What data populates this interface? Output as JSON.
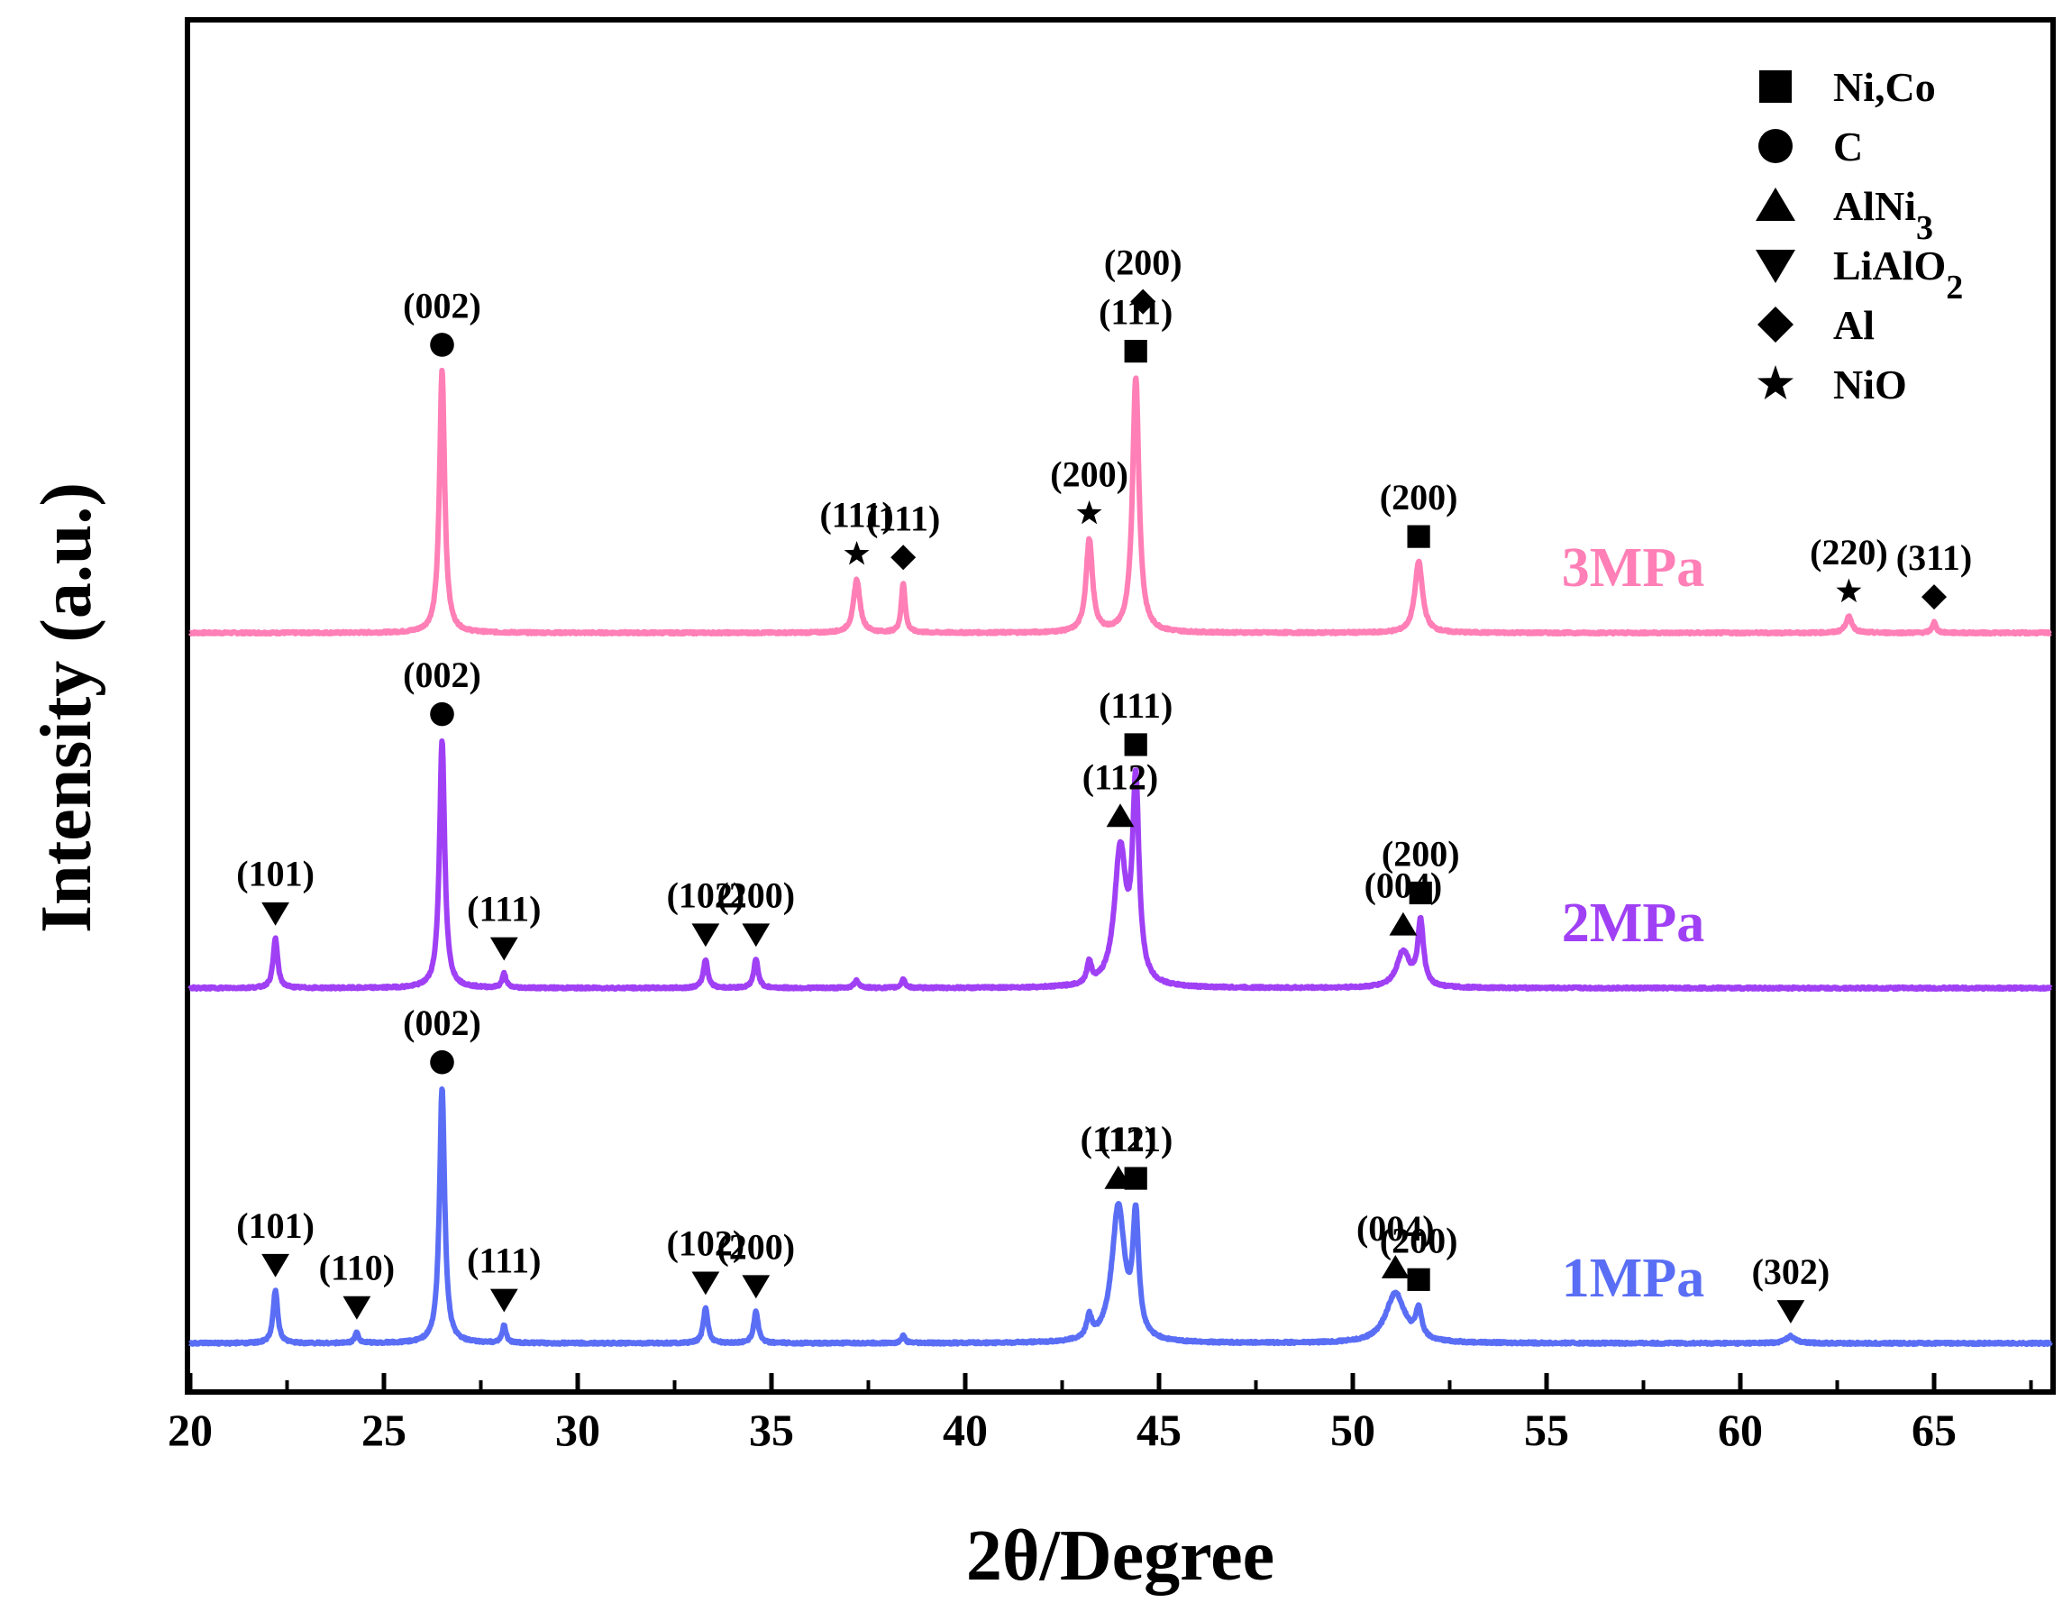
{
  "chart_data": {
    "type": "line",
    "xlabel": "2θ/Degree",
    "ylabel": "Intensity (a.u.)",
    "xlim": [
      20,
      68
    ],
    "xticks": [
      20,
      25,
      30,
      35,
      40,
      45,
      50,
      55,
      60,
      65
    ],
    "legend_position": "top-right",
    "legend": [
      {
        "marker": "square",
        "label": "Ni,Co"
      },
      {
        "marker": "circle",
        "label": "C"
      },
      {
        "marker": "triangle-up",
        "label": "AlNi",
        "sub": "3"
      },
      {
        "marker": "triangle-down",
        "label": "LiAlO",
        "sub": "2"
      },
      {
        "marker": "diamond",
        "label": "Al"
      },
      {
        "marker": "star",
        "label": "NiO"
      }
    ],
    "series": [
      {
        "name": "3MPa",
        "color": "#FF7FB6",
        "offset": 2.0,
        "peaks": [
          {
            "x": 26.5,
            "h": 0.74,
            "w": 0.08
          },
          {
            "x": 37.2,
            "h": 0.15,
            "w": 0.1
          },
          {
            "x": 38.4,
            "h": 0.14,
            "w": 0.06
          },
          {
            "x": 43.2,
            "h": 0.26,
            "w": 0.1
          },
          {
            "x": 44.4,
            "h": 0.72,
            "w": 0.1
          },
          {
            "x": 51.7,
            "h": 0.2,
            "w": 0.12
          },
          {
            "x": 62.8,
            "h": 0.045,
            "w": 0.1
          },
          {
            "x": 65.0,
            "h": 0.03,
            "w": 0.06
          }
        ],
        "annotations": [
          {
            "x": 26.5,
            "marker": "circle",
            "label": "(002)"
          },
          {
            "x": 37.2,
            "marker": "star",
            "label": "(111)"
          },
          {
            "x": 38.4,
            "marker": "diamond",
            "label": "(111)"
          },
          {
            "x": 43.2,
            "marker": "star",
            "label": "(200)"
          },
          {
            "x": 44.4,
            "marker": "square",
            "label": "(111)"
          },
          {
            "x": 44.4,
            "marker": "diamond",
            "label": "(200)"
          },
          {
            "x": 51.7,
            "marker": "square",
            "label": "(200)"
          },
          {
            "x": 62.8,
            "marker": "star",
            "label": "(220)"
          },
          {
            "x": 65.0,
            "marker": "diamond",
            "label": "(311)"
          }
        ]
      },
      {
        "name": "2MPa",
        "color": "#A040F5",
        "offset": 1.0,
        "peaks": [
          {
            "x": 22.2,
            "h": 0.14,
            "w": 0.07
          },
          {
            "x": 26.5,
            "h": 0.7,
            "w": 0.08
          },
          {
            "x": 28.1,
            "h": 0.04,
            "w": 0.06
          },
          {
            "x": 33.3,
            "h": 0.08,
            "w": 0.07
          },
          {
            "x": 34.6,
            "h": 0.08,
            "w": 0.07
          },
          {
            "x": 37.2,
            "h": 0.02,
            "w": 0.08
          },
          {
            "x": 38.4,
            "h": 0.025,
            "w": 0.06
          },
          {
            "x": 43.2,
            "h": 0.06,
            "w": 0.07
          },
          {
            "x": 44.0,
            "h": 0.38,
            "w": 0.18
          },
          {
            "x": 44.4,
            "h": 0.55,
            "w": 0.1
          },
          {
            "x": 51.3,
            "h": 0.1,
            "w": 0.2
          },
          {
            "x": 51.75,
            "h": 0.18,
            "w": 0.09
          }
        ],
        "annotations": [
          {
            "x": 22.2,
            "marker": "triangle-down",
            "label": "(101)"
          },
          {
            "x": 26.5,
            "marker": "circle",
            "label": "(002)"
          },
          {
            "x": 28.1,
            "marker": "triangle-down",
            "label": "(111)"
          },
          {
            "x": 33.3,
            "marker": "triangle-down",
            "label": "(102)"
          },
          {
            "x": 34.6,
            "marker": "triangle-down",
            "label": "(200)"
          },
          {
            "x": 44.0,
            "marker": "triangle-up",
            "label": "(112)"
          },
          {
            "x": 44.4,
            "marker": "square",
            "label": "(111)"
          },
          {
            "x": 51.3,
            "marker": "triangle-up",
            "label": "(004)"
          },
          {
            "x": 51.75,
            "marker": "square",
            "label": "(200)"
          }
        ]
      },
      {
        "name": "1MPa",
        "color": "#5A6EF5",
        "offset": 0.0,
        "peaks": [
          {
            "x": 22.2,
            "h": 0.15,
            "w": 0.07
          },
          {
            "x": 24.3,
            "h": 0.03,
            "w": 0.06
          },
          {
            "x": 26.5,
            "h": 0.72,
            "w": 0.08
          },
          {
            "x": 28.1,
            "h": 0.05,
            "w": 0.06
          },
          {
            "x": 33.3,
            "h": 0.1,
            "w": 0.07
          },
          {
            "x": 34.6,
            "h": 0.09,
            "w": 0.07
          },
          {
            "x": 38.4,
            "h": 0.02,
            "w": 0.06
          },
          {
            "x": 43.2,
            "h": 0.06,
            "w": 0.08
          },
          {
            "x": 43.95,
            "h": 0.38,
            "w": 0.2
          },
          {
            "x": 44.4,
            "h": 0.33,
            "w": 0.09
          },
          {
            "x": 51.1,
            "h": 0.14,
            "w": 0.3
          },
          {
            "x": 51.7,
            "h": 0.08,
            "w": 0.09
          },
          {
            "x": 61.3,
            "h": 0.02,
            "w": 0.15
          }
        ],
        "annotations": [
          {
            "x": 22.2,
            "marker": "triangle-down",
            "label": "(101)"
          },
          {
            "x": 24.3,
            "marker": "triangle-down",
            "label": "(110)"
          },
          {
            "x": 26.5,
            "marker": "circle",
            "label": "(002)"
          },
          {
            "x": 28.1,
            "marker": "triangle-down",
            "label": "(111)"
          },
          {
            "x": 33.3,
            "marker": "triangle-down",
            "label": "(102)"
          },
          {
            "x": 34.6,
            "marker": "triangle-down",
            "label": "(200)"
          },
          {
            "x": 43.95,
            "marker": "triangle-up",
            "label": "(112)"
          },
          {
            "x": 44.4,
            "marker": "square",
            "label": "(111)"
          },
          {
            "x": 51.1,
            "marker": "triangle-up",
            "label": "(004)"
          },
          {
            "x": 51.7,
            "marker": "square",
            "label": "(200)"
          },
          {
            "x": 61.3,
            "marker": "triangle-down",
            "label": "(302)"
          }
        ]
      }
    ]
  }
}
